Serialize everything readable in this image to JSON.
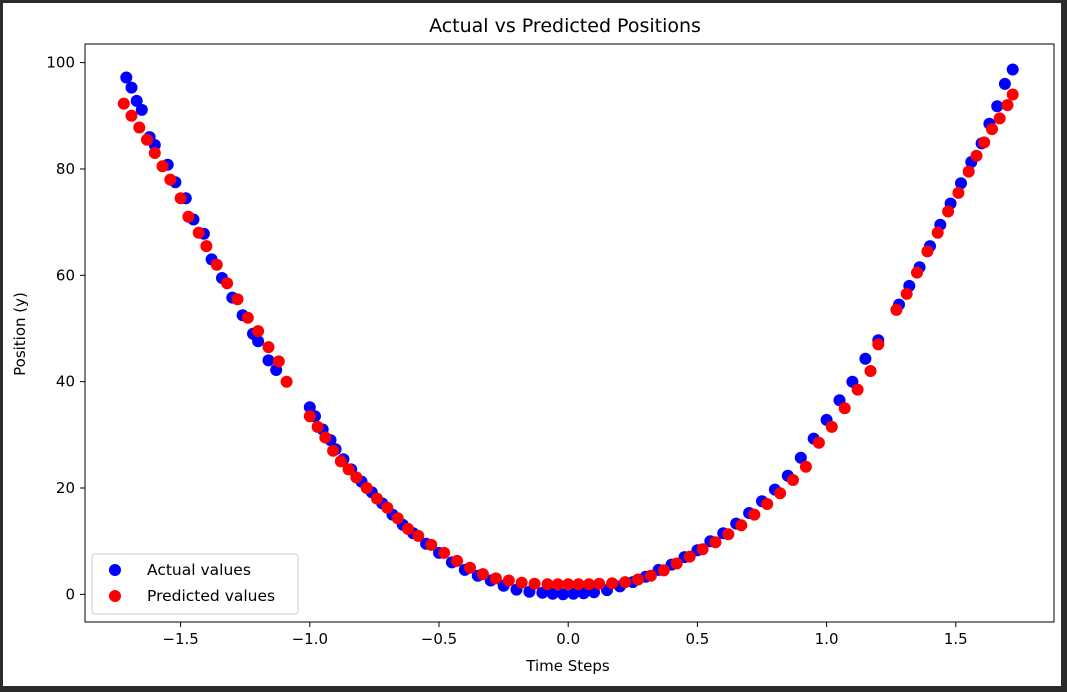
{
  "chart_data": {
    "type": "scatter",
    "title": "Actual vs Predicted Positions",
    "xlabel": "Time Steps",
    "ylabel": "Position (y)",
    "xlim": [
      -1.87,
      1.88
    ],
    "ylim": [
      -5.2,
      103.5
    ],
    "xticks": [
      -1.5,
      -1.0,
      -0.5,
      0.0,
      0.5,
      1.0,
      1.5
    ],
    "xtick_labels": [
      "−1.5",
      "−1.0",
      "−0.5",
      "0.0",
      "0.5",
      "1.0",
      "1.5"
    ],
    "yticks": [
      0,
      20,
      40,
      60,
      80,
      100
    ],
    "ytick_labels": [
      "0",
      "20",
      "40",
      "60",
      "80",
      "100"
    ],
    "grid": false,
    "legend_position": "lower-left",
    "series": [
      {
        "name": "Actual values",
        "color": "#0000ff",
        "x": [
          -1.71,
          -1.69,
          -1.67,
          -1.65,
          -1.62,
          -1.6,
          -1.55,
          -1.52,
          -1.48,
          -1.45,
          -1.41,
          -1.38,
          -1.34,
          -1.3,
          -1.26,
          -1.22,
          -1.2,
          -1.16,
          -1.13,
          -1.0,
          -0.98,
          -0.95,
          -0.92,
          -0.9,
          -0.87,
          -0.84,
          -0.8,
          -0.76,
          -0.72,
          -0.68,
          -0.64,
          -0.6,
          -0.55,
          -0.5,
          -0.45,
          -0.4,
          -0.35,
          -0.3,
          -0.25,
          -0.2,
          -0.15,
          -0.1,
          -0.06,
          -0.02,
          0.02,
          0.06,
          0.1,
          0.15,
          0.2,
          0.25,
          0.3,
          0.35,
          0.4,
          0.45,
          0.5,
          0.55,
          0.6,
          0.65,
          0.7,
          0.75,
          0.8,
          0.85,
          0.9,
          0.95,
          1.0,
          1.05,
          1.1,
          1.15,
          1.2,
          1.28,
          1.32,
          1.36,
          1.4,
          1.44,
          1.48,
          1.52,
          1.56,
          1.6,
          1.63,
          1.66,
          1.69,
          1.72
        ],
        "y": [
          97.2,
          95.3,
          92.8,
          91.1,
          86.0,
          84.5,
          80.8,
          77.5,
          74.5,
          70.5,
          67.8,
          63.0,
          59.5,
          55.8,
          52.5,
          49.0,
          47.6,
          44.0,
          42.2,
          35.2,
          33.5,
          31.0,
          29.0,
          27.3,
          25.4,
          23.5,
          21.2,
          19.2,
          17.1,
          15.0,
          13.1,
          11.5,
          9.5,
          7.8,
          6.0,
          4.6,
          3.5,
          2.6,
          1.6,
          0.9,
          0.5,
          0.3,
          0.1,
          0.0,
          0.1,
          0.2,
          0.4,
          0.8,
          1.5,
          2.3,
          3.3,
          4.6,
          5.6,
          7.0,
          8.3,
          10.0,
          11.5,
          13.3,
          15.3,
          17.5,
          19.7,
          22.3,
          25.7,
          29.3,
          32.8,
          36.5,
          40.0,
          44.3,
          47.8,
          54.5,
          58.0,
          61.5,
          65.5,
          69.5,
          73.5,
          77.3,
          81.3,
          84.8,
          88.5,
          91.8,
          96.0,
          98.7
        ]
      },
      {
        "name": "Predicted values",
        "color": "#ff0000",
        "x": [
          -1.72,
          -1.69,
          -1.66,
          -1.63,
          -1.6,
          -1.57,
          -1.54,
          -1.5,
          -1.47,
          -1.43,
          -1.4,
          -1.36,
          -1.32,
          -1.28,
          -1.24,
          -1.2,
          -1.16,
          -1.12,
          -1.09,
          -1.0,
          -0.97,
          -0.94,
          -0.91,
          -0.88,
          -0.85,
          -0.82,
          -0.78,
          -0.74,
          -0.7,
          -0.66,
          -0.62,
          -0.58,
          -0.53,
          -0.48,
          -0.43,
          -0.38,
          -0.33,
          -0.28,
          -0.23,
          -0.18,
          -0.13,
          -0.08,
          -0.04,
          0.0,
          0.04,
          0.08,
          0.12,
          0.17,
          0.22,
          0.27,
          0.32,
          0.37,
          0.42,
          0.47,
          0.52,
          0.57,
          0.62,
          0.67,
          0.72,
          0.77,
          0.82,
          0.87,
          0.92,
          0.97,
          1.02,
          1.07,
          1.12,
          1.17,
          1.2,
          1.27,
          1.31,
          1.35,
          1.39,
          1.43,
          1.47,
          1.51,
          1.55,
          1.58,
          1.61,
          1.64,
          1.67,
          1.7,
          1.72
        ],
        "y": [
          92.3,
          90.0,
          87.8,
          85.5,
          83.0,
          80.5,
          78.0,
          74.5,
          71.0,
          68.0,
          65.5,
          62.0,
          58.5,
          55.5,
          52.0,
          49.5,
          46.5,
          43.8,
          40.0,
          33.5,
          31.5,
          29.5,
          27.0,
          25.0,
          23.5,
          22.0,
          20.0,
          18.0,
          16.3,
          14.3,
          12.3,
          11.0,
          9.3,
          7.8,
          6.3,
          5.0,
          3.8,
          3.0,
          2.6,
          2.2,
          2.0,
          1.9,
          1.9,
          1.9,
          1.9,
          1.9,
          2.0,
          2.1,
          2.3,
          2.8,
          3.5,
          4.5,
          5.8,
          7.1,
          8.5,
          9.8,
          11.3,
          13.0,
          15.0,
          17.0,
          19.0,
          21.5,
          24.0,
          28.5,
          31.5,
          35.0,
          38.5,
          42.0,
          47.0,
          53.5,
          56.5,
          60.5,
          64.5,
          68.0,
          72.0,
          75.5,
          79.5,
          82.5,
          85.0,
          87.5,
          89.5,
          92.0,
          94.0
        ]
      }
    ]
  }
}
